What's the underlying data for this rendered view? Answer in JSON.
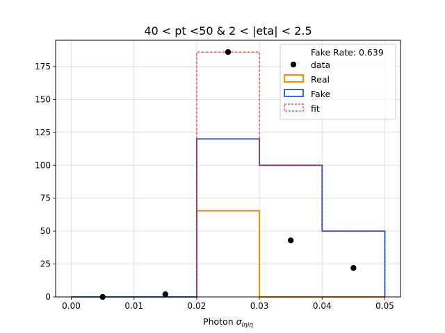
{
  "chart_data": {
    "type": "histogram",
    "title": "40 < pt <50 & 2 < |eta| < 2.5",
    "xlabel_main": "Photon ",
    "xlabel_symbol": "σ",
    "xlabel_sub": "iηiη",
    "ylabel": "",
    "xlim": [
      -0.0025,
      0.0525
    ],
    "ylim": [
      0,
      195
    ],
    "grid": true,
    "x_ticks": [
      0.0,
      0.01,
      0.02,
      0.03,
      0.04,
      0.05
    ],
    "x_tick_labels": [
      "0.00",
      "0.01",
      "0.02",
      "0.03",
      "0.04",
      "0.05"
    ],
    "y_ticks": [
      0,
      25,
      50,
      75,
      100,
      125,
      150,
      175
    ],
    "y_tick_labels": [
      "0",
      "25",
      "50",
      "75",
      "100",
      "125",
      "150",
      "175"
    ],
    "bin_edges": [
      0.0,
      0.01,
      0.02,
      0.03,
      0.04,
      0.05
    ],
    "series": [
      {
        "name": "Real",
        "kind": "step",
        "color": "#ff8c00",
        "values": [
          0,
          0,
          65.5,
          0,
          0
        ]
      },
      {
        "name": "Fake",
        "kind": "step",
        "color": "#3a6bd4",
        "values": [
          0,
          0,
          120,
          100,
          50
        ]
      },
      {
        "name": "fit",
        "kind": "step-dashed",
        "color": "#ff0000",
        "values": [
          0,
          0,
          186,
          100,
          50
        ]
      },
      {
        "name": "data",
        "kind": "points",
        "color": "#000000",
        "x": [
          0.005,
          0.015,
          0.025,
          0.035,
          0.045
        ],
        "y": [
          0,
          2,
          186,
          43,
          22
        ]
      }
    ],
    "legend": {
      "placement": "top-right",
      "header": "Fake Rate: 0.639",
      "entries": [
        "data",
        "Real",
        "Fake",
        "fit"
      ]
    }
  }
}
